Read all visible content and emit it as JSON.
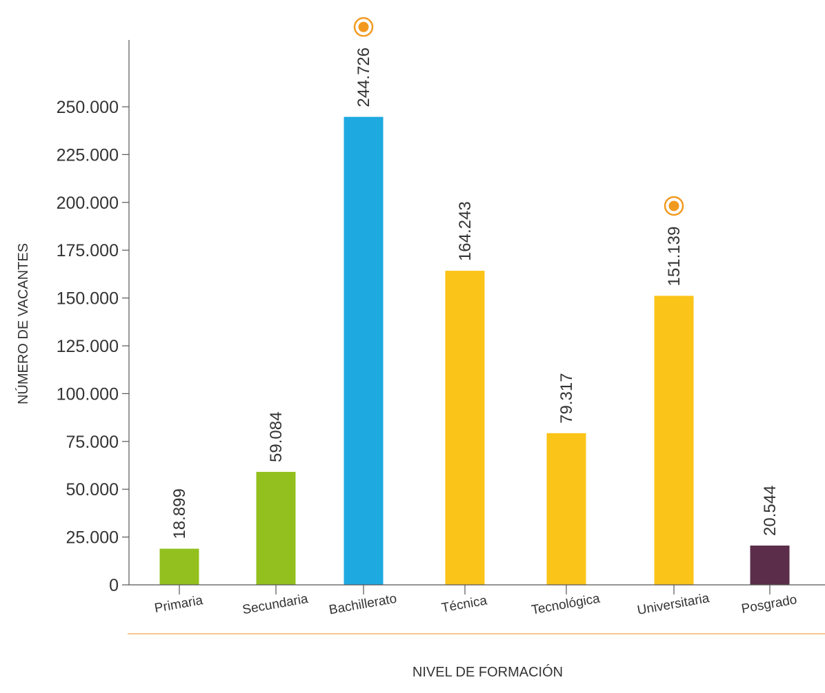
{
  "chart_data": {
    "type": "bar",
    "categories": [
      "Primaria",
      "Secundaria",
      "Bachillerato",
      "Técnica",
      "Tecnológica",
      "Universitaria",
      "Posgrado"
    ],
    "values": [
      18899,
      59084,
      244726,
      164243,
      79317,
      151139,
      20544
    ],
    "value_labels": [
      "18.899",
      "59.084",
      "244.726",
      "164.243",
      "79.317",
      "151.139",
      "20.544"
    ],
    "bar_colors": [
      "#93c01f",
      "#93c01f",
      "#1fa9e1",
      "#fbc418",
      "#fbc418",
      "#fbc418",
      "#5b2d4a"
    ],
    "highlighted": [
      "Bachillerato",
      "Universitaria"
    ],
    "highlight_color": "#f29a1f",
    "xlabel": "NIVEL DE FORMACIÓN",
    "ylabel": "NÚMERO DE VACANTES",
    "ylim": [
      0,
      275000
    ],
    "yticks": [
      0,
      25000,
      50000,
      75000,
      100000,
      125000,
      150000,
      175000,
      200000,
      225000,
      250000
    ],
    "ytick_labels": [
      "0",
      "25.000",
      "50.000",
      "75.000",
      "100.000",
      "125.000",
      "150.000",
      "175.000",
      "200.000",
      "225.000",
      "250.000"
    ],
    "grid": false,
    "legend": "none"
  }
}
